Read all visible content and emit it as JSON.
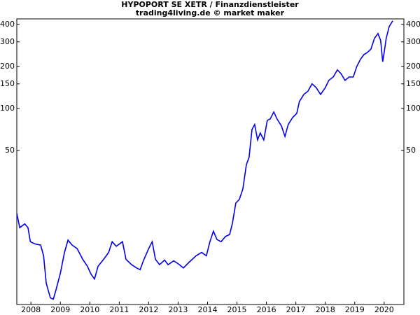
{
  "chart_data": {
    "type": "line",
    "log_y": true,
    "title": "HYPOPORT SE XETR / Finanzdienstleister",
    "subtitle": "trading4living.de © market maker",
    "x": [
      2007.52,
      2007.62,
      2007.79,
      2007.9,
      2007.98,
      2008.14,
      2008.33,
      2008.43,
      2008.52,
      2008.66,
      2008.76,
      2008.85,
      2009.0,
      2009.14,
      2009.26,
      2009.4,
      2009.57,
      2009.76,
      2009.92,
      2010.04,
      2010.16,
      2010.28,
      2010.47,
      2010.64,
      2010.76,
      2010.9,
      2011.11,
      2011.23,
      2011.42,
      2011.59,
      2011.71,
      2011.83,
      2012.0,
      2012.12,
      2012.23,
      2012.37,
      2012.54,
      2012.66,
      2012.85,
      2013.01,
      2013.18,
      2013.37,
      2013.61,
      2013.8,
      2013.96,
      2014.08,
      2014.2,
      2014.32,
      2014.46,
      2014.61,
      2014.75,
      2014.84,
      2014.96,
      2015.08,
      2015.2,
      2015.32,
      2015.41,
      2015.51,
      2015.6,
      2015.7,
      2015.79,
      2015.91,
      2016.03,
      2016.13,
      2016.25,
      2016.36,
      2016.51,
      2016.63,
      2016.74,
      2016.89,
      2017.03,
      2017.12,
      2017.27,
      2017.41,
      2017.55,
      2017.69,
      2017.84,
      2018.0,
      2018.12,
      2018.27,
      2018.41,
      2018.53,
      2018.67,
      2018.81,
      2018.95,
      2019.07,
      2019.19,
      2019.31,
      2019.43,
      2019.55,
      2019.67,
      2019.79,
      2019.88,
      2019.95,
      2020.0,
      2020.07,
      2020.17,
      2020.29
    ],
    "series": [
      {
        "name": "HYPOPORT",
        "color": "#0000ee",
        "values": [
          17.7,
          14.0,
          14.9,
          14.0,
          11.1,
          10.7,
          10.5,
          8.8,
          5.6,
          4.4,
          4.3,
          5.0,
          6.6,
          9.3,
          11.4,
          10.5,
          9.9,
          8.3,
          7.4,
          6.5,
          6.0,
          7.4,
          8.3,
          9.3,
          11.1,
          10.3,
          11.1,
          8.3,
          7.6,
          7.2,
          7.0,
          8.2,
          9.9,
          11.1,
          8.3,
          7.6,
          8.2,
          7.6,
          8.1,
          7.7,
          7.2,
          7.9,
          8.8,
          9.3,
          8.8,
          11.1,
          13.2,
          11.5,
          11.1,
          12.1,
          12.5,
          14.9,
          21,
          22.3,
          26.5,
          39.7,
          44.5,
          70.7,
          76.7,
          59.5,
          66.7,
          59.5,
          82.2,
          84.1,
          94.4,
          84.1,
          74.9,
          63,
          76.7,
          86.1,
          92.2,
          112,
          126,
          133,
          150,
          141,
          126,
          141,
          159,
          168,
          189,
          178,
          159,
          168,
          168,
          200,
          224,
          243,
          252,
          266,
          318,
          344,
          307,
          216,
          252,
          318,
          386,
          424
        ]
      }
    ],
    "xlim": [
      2007.52,
      2020.67
    ],
    "xticks": [
      2008,
      2009,
      2010,
      2011,
      2012,
      2013,
      2014,
      2015,
      2016,
      2017,
      2018,
      2019,
      2020
    ],
    "ylim": [
      3.94,
      438
    ],
    "yticks": [
      50,
      100,
      150,
      200,
      300,
      400
    ]
  }
}
